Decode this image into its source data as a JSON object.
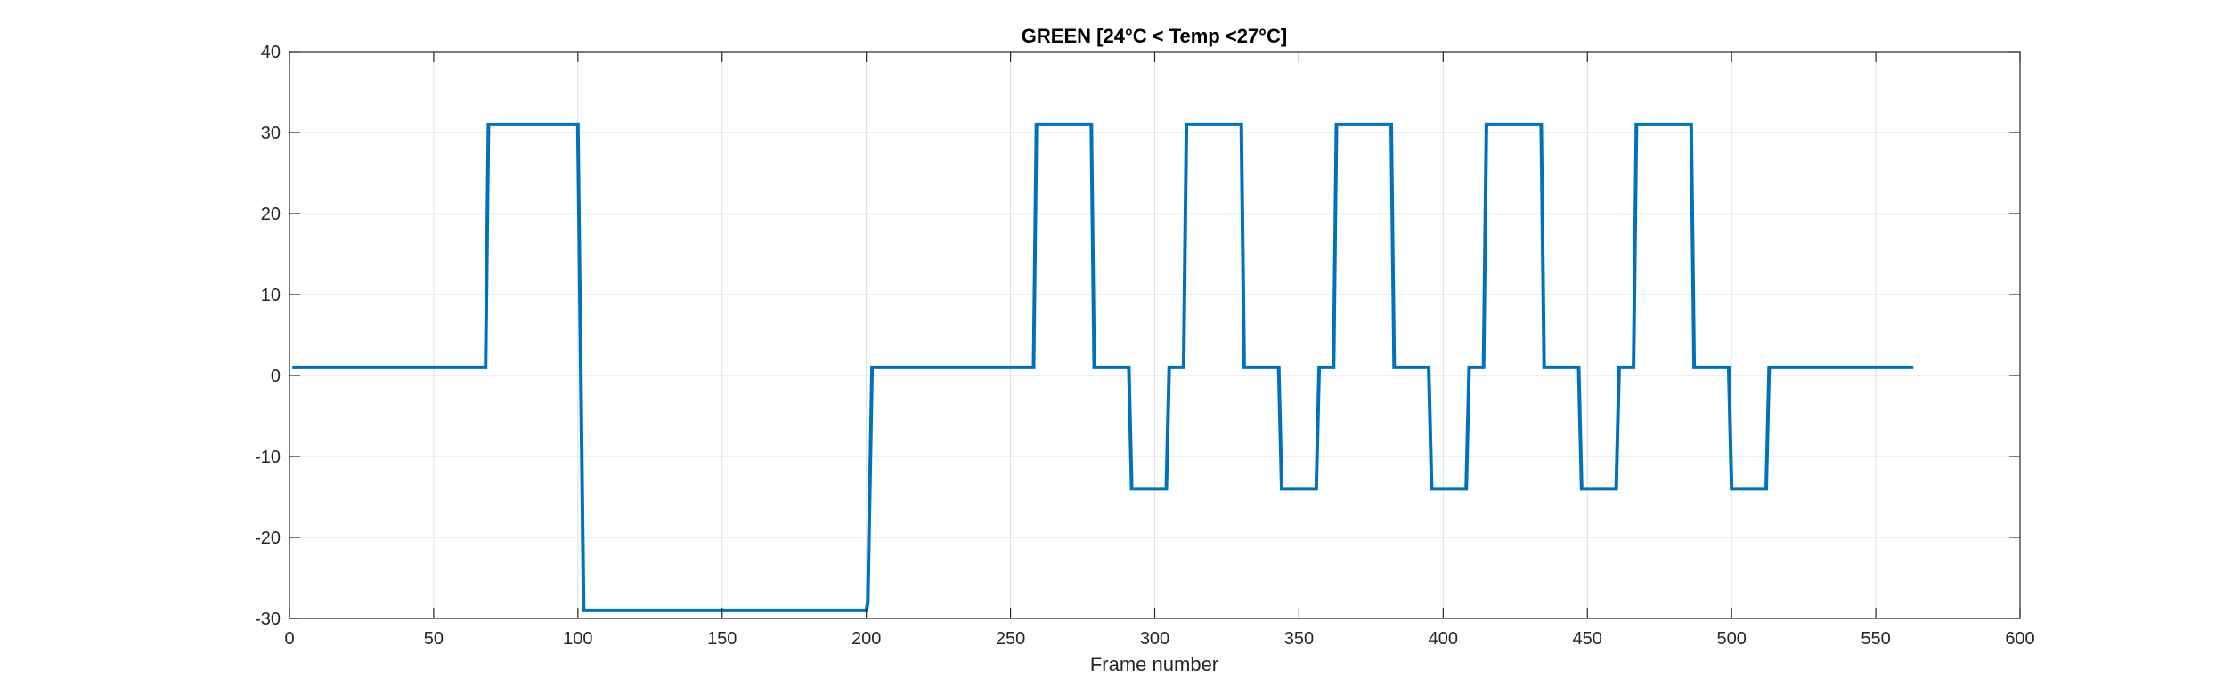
{
  "chart_data": {
    "type": "line",
    "title": "GREEN [24°C < Temp <27°C]",
    "xlabel": "Frame number",
    "ylabel": "",
    "xlim": [
      0,
      600
    ],
    "ylim": [
      -30,
      40
    ],
    "xticks": [
      0,
      50,
      100,
      150,
      200,
      250,
      300,
      350,
      400,
      450,
      500,
      550,
      600
    ],
    "yticks": [
      -30,
      -20,
      -10,
      0,
      10,
      20,
      30,
      40
    ],
    "grid": true,
    "box": true,
    "series": [
      {
        "color": "#0072BD",
        "x": [
          1,
          68,
          69,
          100,
          102,
          200,
          200.5,
          202,
          258,
          259,
          278,
          279,
          291,
          292,
          304,
          305,
          310,
          311,
          330,
          331,
          343,
          344,
          356,
          357,
          362,
          363,
          382,
          383,
          395,
          396,
          408,
          409,
          414,
          415,
          434,
          435,
          447,
          448,
          460,
          461,
          466,
          467,
          486,
          487,
          499,
          500,
          512,
          513,
          563
        ],
        "y": [
          1,
          1,
          31,
          31,
          -29,
          -29,
          -28,
          1,
          1,
          31,
          31,
          1,
          1,
          -14,
          -14,
          1,
          1,
          31,
          31,
          1,
          1,
          -14,
          -14,
          1,
          1,
          31,
          31,
          1,
          1,
          -14,
          -14,
          1,
          1,
          31,
          31,
          1,
          1,
          -14,
          -14,
          1,
          1,
          31,
          31,
          1,
          1,
          -14,
          -14,
          1,
          1
        ]
      }
    ]
  }
}
